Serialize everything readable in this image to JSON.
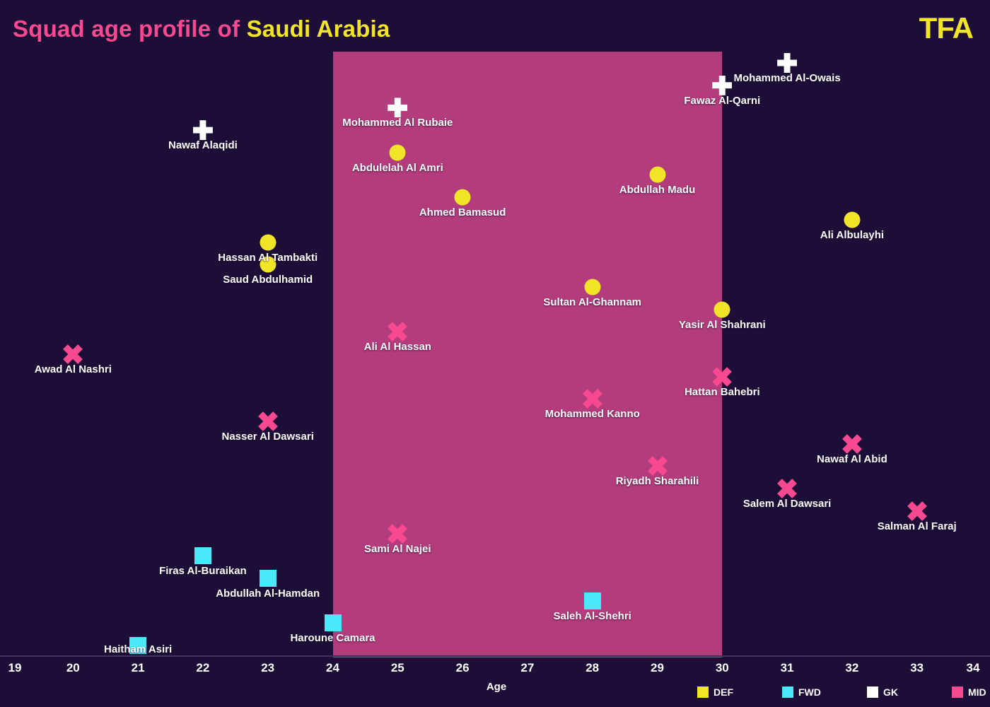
{
  "header": {
    "title_prefix": "Squad age profile of ",
    "title_team": "Saudi Arabia",
    "logo": "TFA"
  },
  "colors": {
    "background": "#1d0e38",
    "band": "#b23c7c",
    "axis_line": "#42325f",
    "pink": "#f6498f",
    "yellow": "#f2e426",
    "cyan": "#4ae8f8",
    "white": "#ffffff"
  },
  "chart_data": {
    "type": "scatter",
    "title": "Squad age profile of Saudi Arabia",
    "xlabel": "Age",
    "xlim": [
      19,
      34
    ],
    "x_ticks": [
      19,
      20,
      21,
      22,
      23,
      24,
      25,
      26,
      27,
      28,
      29,
      30,
      31,
      32,
      33,
      34
    ],
    "grid": false,
    "highlight_band": {
      "from_age": 24,
      "to_age": 30
    },
    "legend_position": "bottom-right",
    "legend": [
      {
        "label": "DEF",
        "color": "#f2e426",
        "marker": "circle"
      },
      {
        "label": "FWD",
        "color": "#4ae8f8",
        "marker": "square"
      },
      {
        "label": "GK",
        "color": "#ffffff",
        "marker": "plus"
      },
      {
        "label": "MID",
        "color": "#f6498f",
        "marker": "x"
      }
    ],
    "players": [
      {
        "name": "Mohammed Al-Owais",
        "age": 31,
        "position": "GK"
      },
      {
        "name": "Fawaz Al-Qarni",
        "age": 30,
        "position": "GK"
      },
      {
        "name": "Mohammed Al Rubaie",
        "age": 25,
        "position": "GK"
      },
      {
        "name": "Nawaf Alaqidi",
        "age": 22,
        "position": "GK"
      },
      {
        "name": "Abdulelah Al Amri",
        "age": 25,
        "position": "DEF"
      },
      {
        "name": "Abdullah Madu",
        "age": 29,
        "position": "DEF"
      },
      {
        "name": "Ahmed Bamasud",
        "age": 26,
        "position": "DEF"
      },
      {
        "name": "Ali Albulayhi",
        "age": 32,
        "position": "DEF"
      },
      {
        "name": "Hassan Al Tambakti",
        "age": 23,
        "position": "DEF"
      },
      {
        "name": "Saud Abdulhamid",
        "age": 23,
        "position": "DEF"
      },
      {
        "name": "Sultan Al-Ghannam",
        "age": 28,
        "position": "DEF"
      },
      {
        "name": "Yasir Al Shahrani",
        "age": 30,
        "position": "DEF"
      },
      {
        "name": "Ali Al Hassan",
        "age": 25,
        "position": "MID"
      },
      {
        "name": "Awad Al Nashri",
        "age": 20,
        "position": "MID"
      },
      {
        "name": "Hattan Bahebri",
        "age": 30,
        "position": "MID"
      },
      {
        "name": "Mohammed Kanno",
        "age": 28,
        "position": "MID"
      },
      {
        "name": "Nasser Al Dawsari",
        "age": 23,
        "position": "MID"
      },
      {
        "name": "Nawaf Al Abid",
        "age": 32,
        "position": "MID"
      },
      {
        "name": "Riyadh Sharahili",
        "age": 29,
        "position": "MID"
      },
      {
        "name": "Salem Al Dawsari",
        "age": 31,
        "position": "MID"
      },
      {
        "name": "Salman Al Faraj",
        "age": 33,
        "position": "MID"
      },
      {
        "name": "Sami Al Najei",
        "age": 25,
        "position": "MID"
      },
      {
        "name": "Firas Al-Buraikan",
        "age": 22,
        "position": "FWD"
      },
      {
        "name": "Abdullah Al-Hamdan",
        "age": 23,
        "position": "FWD"
      },
      {
        "name": "Saleh Al-Shehri",
        "age": 28,
        "position": "FWD"
      },
      {
        "name": "Haroune Camara",
        "age": 24,
        "position": "FWD"
      },
      {
        "name": "Haitham Asiri",
        "age": 21,
        "position": "FWD",
        "label_overlap": true
      }
    ]
  }
}
